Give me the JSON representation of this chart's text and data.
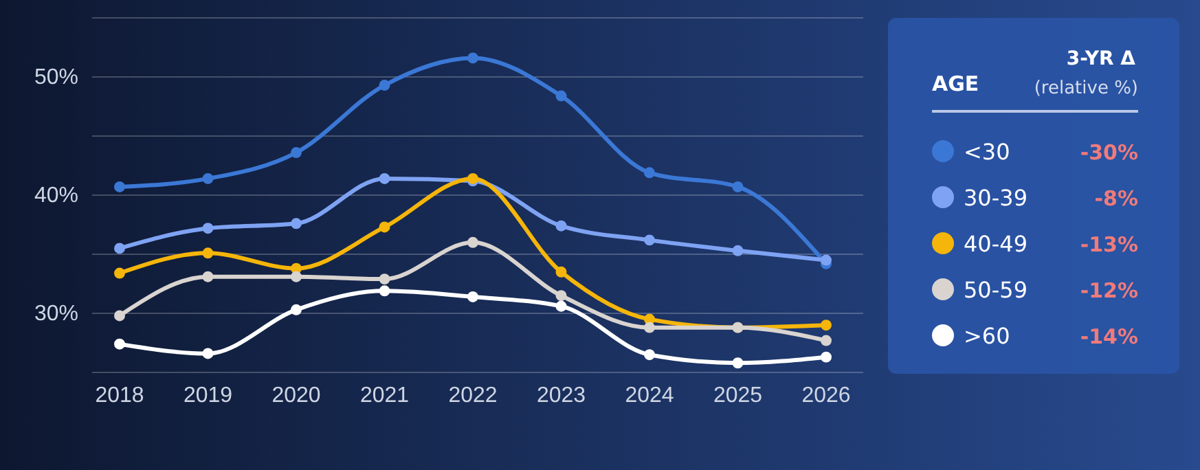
{
  "chart_data": {
    "type": "line",
    "categories": [
      "2018",
      "2019",
      "2020",
      "2021",
      "2022",
      "2023",
      "2024",
      "2025",
      "2026"
    ],
    "series": [
      {
        "name": "<30",
        "color": "#3b78d6",
        "values": [
          40.7,
          41.4,
          43.6,
          49.3,
          51.6,
          48.4,
          41.9,
          40.7,
          34.2
        ]
      },
      {
        "name": "30-39",
        "color": "#7fa3f3",
        "values": [
          35.5,
          37.2,
          37.6,
          41.4,
          41.2,
          37.4,
          36.2,
          35.3,
          34.5
        ]
      },
      {
        "name": "40-49",
        "color": "#f5b50a",
        "values": [
          33.4,
          35.1,
          33.8,
          37.3,
          41.4,
          33.5,
          29.5,
          28.8,
          29.0
        ]
      },
      {
        "name": "50-59",
        "color": "#d9d4d0",
        "values": [
          29.8,
          33.1,
          33.1,
          32.9,
          36.0,
          31.5,
          28.8,
          28.8,
          27.7
        ]
      },
      {
        "name": ">60",
        "color": "#ffffff",
        "values": [
          27.4,
          26.6,
          30.3,
          31.9,
          31.4,
          30.6,
          26.5,
          25.8,
          26.3
        ]
      }
    ],
    "ylim": [
      25,
      55
    ],
    "yticks": [
      {
        "value": 25,
        "label": null
      },
      "30%",
      {
        "value": 35,
        "label": null
      },
      {
        "value": 40,
        "label": "40%"
      },
      {
        "value": 45,
        "label": null
      },
      {
        "value": 50,
        "label": "50%"
      },
      {
        "value": 55,
        "label": null
      }
    ],
    "grid": "y",
    "legend": "right",
    "marker": "circle",
    "line_style": "solid",
    "legend_title": "AGE",
    "annotations": [
      "3-YR Δ",
      "(relative %)",
      "-30%",
      "-8%",
      "-13%",
      "-12%",
      "-14%"
    ]
  }
}
